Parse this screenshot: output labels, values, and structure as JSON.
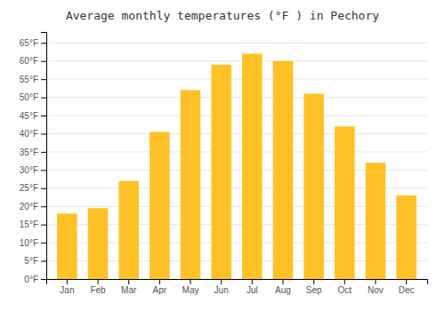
{
  "chart_data": {
    "type": "bar",
    "title": "Average monthly temperatures (°F ) in Pechory",
    "categories": [
      "Jan",
      "Feb",
      "Mar",
      "Apr",
      "May",
      "Jun",
      "Jul",
      "Aug",
      "Sep",
      "Oct",
      "Nov",
      "Dec"
    ],
    "values": [
      18,
      19.5,
      27,
      40.5,
      52,
      59,
      62,
      60,
      51,
      42,
      32,
      23
    ],
    "color": "#FFC125",
    "ylim": [
      0,
      68
    ],
    "yticks": [
      {
        "value": 0,
        "label": "0°F"
      },
      {
        "value": 5,
        "label": "5°F"
      },
      {
        "value": 10,
        "label": "10°F"
      },
      {
        "value": 15,
        "label": "15°F"
      },
      {
        "value": 20,
        "label": "20°F"
      },
      {
        "value": 25,
        "label": "25°F"
      },
      {
        "value": 30,
        "label": "30°F"
      },
      {
        "value": 35,
        "label": "35°F"
      },
      {
        "value": 40,
        "label": "40°F"
      },
      {
        "value": 45,
        "label": "45°F"
      },
      {
        "value": 50,
        "label": "50°F"
      },
      {
        "value": 55,
        "label": "55°F"
      },
      {
        "value": 60,
        "label": "60°F"
      },
      {
        "value": 65,
        "label": "65°F"
      }
    ],
    "grid": true
  }
}
